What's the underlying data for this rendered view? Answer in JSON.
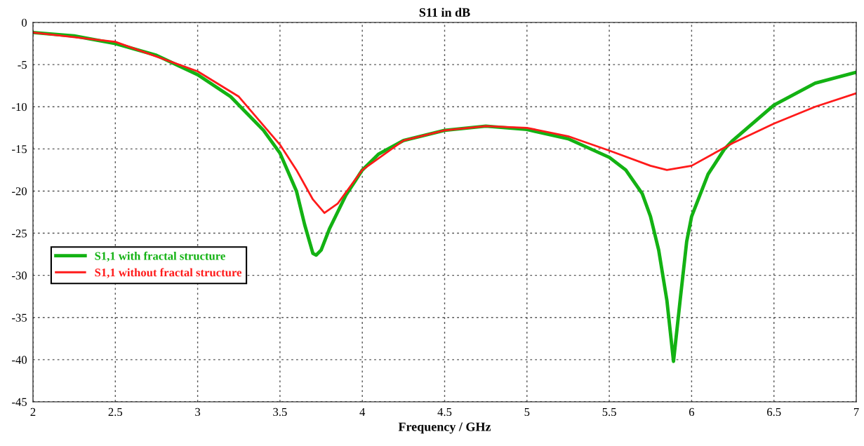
{
  "chart_data": {
    "type": "line",
    "title": "S11 in dB",
    "xlabel": "Frequency / GHz",
    "xlim": [
      2,
      7
    ],
    "xticks": [
      2,
      2.5,
      3,
      3.5,
      4,
      4.5,
      5,
      5.5,
      6,
      6.5,
      7
    ],
    "ylim": [
      -45,
      0
    ],
    "yticks": [
      -45,
      -40,
      -35,
      -30,
      -25,
      -20,
      -15,
      -10,
      -5,
      0
    ],
    "grid": true,
    "legend": "center left",
    "line_style": "solid",
    "series": [
      {
        "name": "S1,1 with fractal structure",
        "color": "#13b213",
        "x": [
          2,
          2.25,
          2.5,
          2.75,
          3.0,
          3.2,
          3.4,
          3.5,
          3.6,
          3.65,
          3.7,
          3.72,
          3.75,
          3.8,
          3.9,
          4.0,
          4.1,
          4.25,
          4.5,
          4.75,
          5.0,
          5.25,
          5.5,
          5.6,
          5.7,
          5.75,
          5.8,
          5.85,
          5.89,
          5.93,
          5.97,
          6.0,
          6.1,
          6.2,
          6.25,
          6.5,
          6.75,
          7.0
        ],
        "values": [
          -1.2,
          -1.6,
          -2.5,
          -3.9,
          -6.2,
          -8.8,
          -12.8,
          -15.5,
          -20,
          -24,
          -27.4,
          -27.6,
          -27,
          -24.5,
          -20.5,
          -17.5,
          -15.6,
          -14,
          -12.8,
          -12.3,
          -12.7,
          -13.8,
          -16,
          -17.5,
          -20.3,
          -23,
          -27,
          -33,
          -40.2,
          -33,
          -26,
          -23,
          -18,
          -15,
          -14,
          -9.8,
          -7.2,
          -5.9
        ]
      },
      {
        "name": "S1,1 without fractal structure",
        "color": "#ff1a1a",
        "x": [
          2,
          2.5,
          3.0,
          3.25,
          3.5,
          3.6,
          3.7,
          3.77,
          3.85,
          4.0,
          4.25,
          4.5,
          4.75,
          5.0,
          5.25,
          5.5,
          5.75,
          5.85,
          6.0,
          6.25,
          6.5,
          6.75,
          7.0
        ],
        "values": [
          -1.2,
          -2.3,
          -5.8,
          -8.8,
          -14.5,
          -17.5,
          -21,
          -22.6,
          -21.5,
          -17.5,
          -14,
          -12.8,
          -12.3,
          -12.5,
          -13.5,
          -15.2,
          -17,
          -17.5,
          -17,
          -14.3,
          -12,
          -10,
          -8.4
        ]
      }
    ]
  }
}
